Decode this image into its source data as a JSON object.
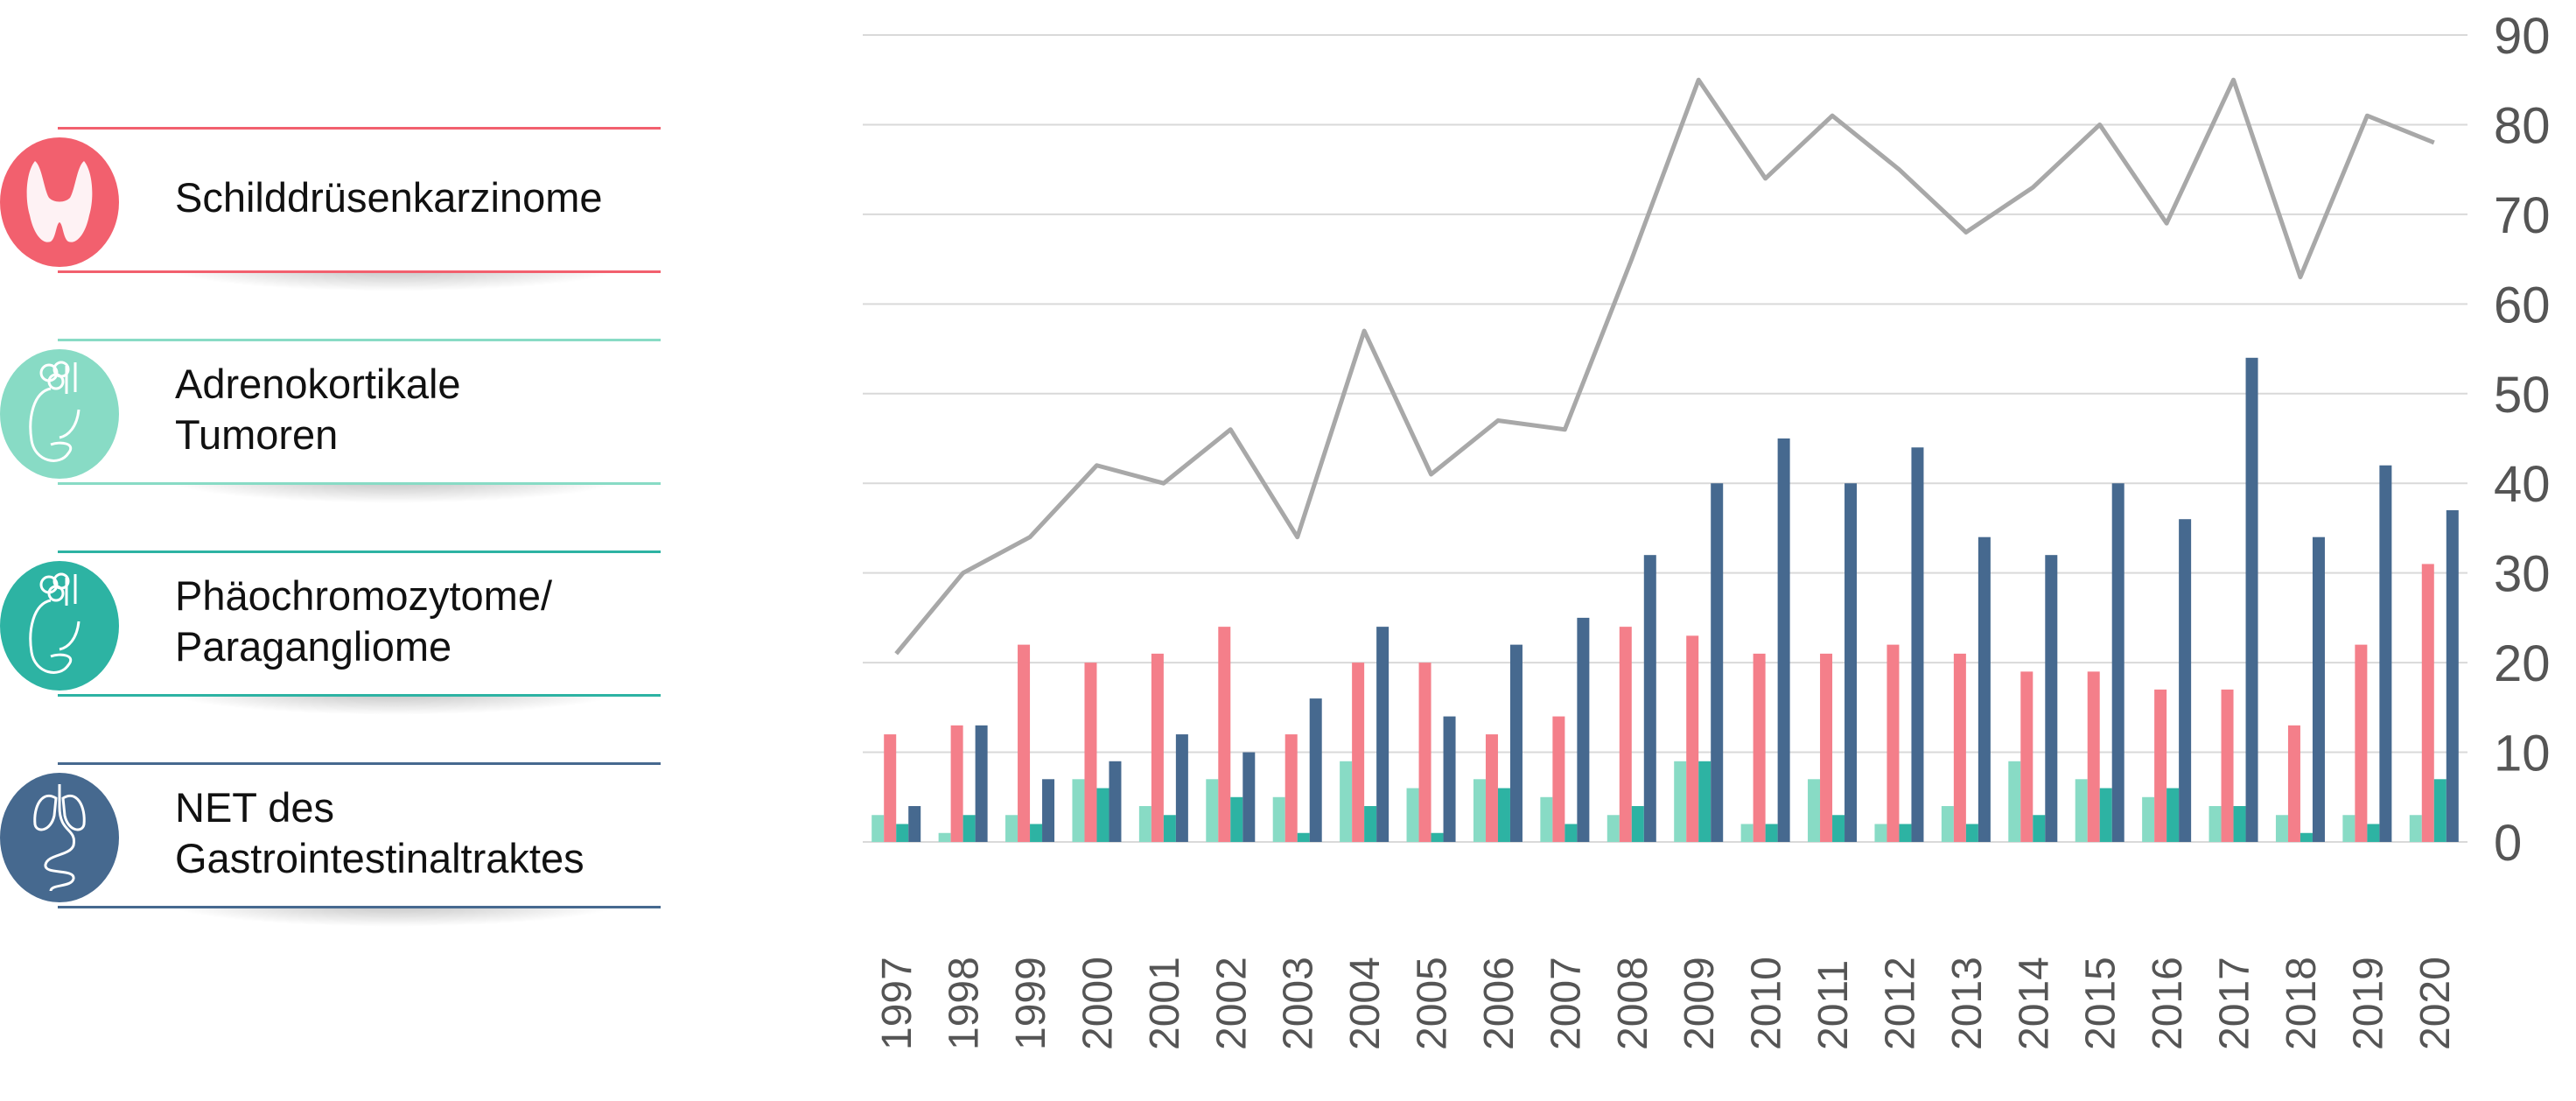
{
  "legend": [
    {
      "label": "Schilddrüsenkarzinome",
      "color": "#F2606E",
      "icon": "thyroid-icon"
    },
    {
      "label": "Adrenokortikale\nTumoren",
      "color": "#88DBC5",
      "icon": "adrenal-kidney-icon"
    },
    {
      "label": "Phäochromozytome/\nParagangliome",
      "color": "#2DB3A3",
      "icon": "adrenal-kidney-icon"
    },
    {
      "label": "NET des\nGastrointestinaltraktes",
      "color": "#46698F",
      "icon": "gastrointestinal-icon"
    }
  ],
  "chart_data": {
    "type": "bar",
    "categories": [
      "1997",
      "1998",
      "1999",
      "2000",
      "2001",
      "2002",
      "2003",
      "2004",
      "2005",
      "2006",
      "2007",
      "2008",
      "2009",
      "2010",
      "2011",
      "2012",
      "2013",
      "2014",
      "2015",
      "2016",
      "2017",
      "2018",
      "2019",
      "2020"
    ],
    "series": [
      {
        "name": "Adrenokortikale Tumoren",
        "type": "bar",
        "color": "#88DBC5",
        "values": [
          3,
          1,
          3,
          7,
          4,
          7,
          5,
          9,
          6,
          7,
          5,
          3,
          9,
          2,
          7,
          2,
          4,
          9,
          7,
          5,
          4,
          3,
          3,
          3
        ]
      },
      {
        "name": "Schilddrüsenkarzinome",
        "type": "bar",
        "color": "#F47F8A",
        "values": [
          12,
          13,
          22,
          20,
          21,
          24,
          12,
          20,
          20,
          12,
          14,
          24,
          23,
          21,
          21,
          22,
          21,
          19,
          19,
          17,
          17,
          13,
          22,
          31
        ]
      },
      {
        "name": "Phäochromozytome/Paragangliome",
        "type": "bar",
        "color": "#2DB3A3",
        "values": [
          2,
          3,
          2,
          6,
          3,
          5,
          1,
          4,
          1,
          6,
          2,
          4,
          9,
          2,
          3,
          2,
          2,
          3,
          6,
          6,
          4,
          1,
          2,
          7
        ]
      },
      {
        "name": "NET des Gastrointestinaltraktes",
        "type": "bar",
        "color": "#46698F",
        "values": [
          4,
          13,
          7,
          9,
          12,
          10,
          16,
          24,
          14,
          22,
          25,
          32,
          40,
          45,
          40,
          44,
          34,
          32,
          40,
          36,
          54,
          34,
          42,
          37
        ]
      },
      {
        "type": "line",
        "color": "#A8A8A8",
        "values": [
          21,
          30,
          34,
          42,
          40,
          46,
          34,
          57,
          41,
          47,
          46,
          65,
          85,
          74,
          81,
          75,
          68,
          73,
          80,
          69,
          85,
          63,
          81,
          78
        ]
      }
    ],
    "yticks": [
      "0",
      "10",
      "20",
      "30",
      "40",
      "50",
      "60",
      "70",
      "80",
      "90"
    ],
    "ylim": [
      0,
      90
    ],
    "y_axis_side": "right",
    "grid": true,
    "xlabel_rotation": -90,
    "legend_placement": "left"
  }
}
